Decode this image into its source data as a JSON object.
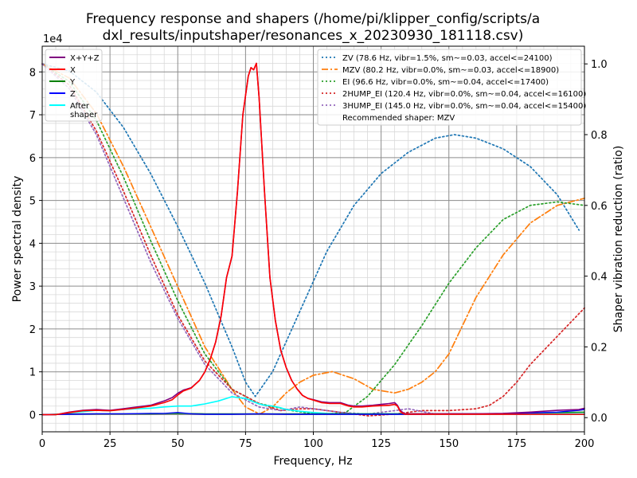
{
  "chart_data": {
    "type": "line",
    "title_lines": [
      "Frequency response and shapers (/home/pi/klipper_config/scripts/a",
      "dxl_results/inputshaper/resonances_x_20230930_181118.csv)"
    ],
    "xlabel": "Frequency, Hz",
    "ylabel": "Power spectral density",
    "y2label": "Shaper vibration reduction (ratio)",
    "y_offset_text": "1e4",
    "xlim": [
      0,
      200
    ],
    "ylim": [
      -0.4,
      8.6
    ],
    "y2lim": [
      -0.04,
      1.05
    ],
    "x_ticks": [
      0,
      25,
      50,
      75,
      100,
      125,
      150,
      175,
      200
    ],
    "x_tick_labels": [
      "0",
      "25",
      "50",
      "75",
      "100",
      "125",
      "150",
      "175",
      "200"
    ],
    "y_ticks": [
      0,
      1,
      2,
      3,
      4,
      5,
      6,
      7,
      8
    ],
    "y_tick_labels": [
      "0",
      "1",
      "2",
      "3",
      "4",
      "5",
      "6",
      "7",
      "8"
    ],
    "y2_ticks": [
      0,
      0.2,
      0.4,
      0.6,
      0.8,
      1.0
    ],
    "y2_tick_labels": [
      "0.0",
      "0.2",
      "0.4",
      "0.6",
      "0.8",
      "1.0"
    ],
    "grid": true,
    "legend_left": {
      "placement": "top-left",
      "entries": [
        {
          "label": "X+Y+Z",
          "color": "#800080"
        },
        {
          "label": "X",
          "color": "#ff0000"
        },
        {
          "label": "Y",
          "color": "#008000"
        },
        {
          "label": "Z",
          "color": "#0000ff"
        },
        {
          "label_lines": [
            "After",
            "shaper"
          ],
          "color": "#00ffff"
        }
      ]
    },
    "legend_right": {
      "placement": "top-right",
      "entries": [
        {
          "label": "ZV (78.6 Hz, vibr=1.5%, sm~=0.03, accel<=24100)",
          "color": "#1f77b4",
          "dash": "dot"
        },
        {
          "label": "MZV (80.2 Hz, vibr=0.0%, sm~=0.03, accel<=18900)",
          "color": "#ff7f0e",
          "dash": "dashdot"
        },
        {
          "label": "EI (96.6 Hz, vibr=0.0%, sm~=0.04, accel<=17400)",
          "color": "#2ca02c",
          "dash": "dot"
        },
        {
          "label": "2HUMP_EI (120.4 Hz, vibr=0.0%, sm~=0.04, accel<=16100)",
          "color": "#d62728",
          "dash": "dot"
        },
        {
          "label": "3HUMP_EI (145.0 Hz, vibr=0.0%, sm~=0.04, accel<=15400)",
          "color": "#9467bd",
          "dash": "dot"
        }
      ],
      "note": "Recommended shaper: MZV"
    },
    "series": [
      {
        "name": "X+Y+Z",
        "axis": "left",
        "color": "#800080",
        "width": 1.6,
        "x": [
          0,
          5,
          10,
          15,
          20,
          25,
          30,
          35,
          40,
          45,
          48,
          50,
          52,
          55,
          58,
          60,
          62,
          64,
          66,
          68,
          70,
          72,
          74,
          76,
          77,
          78,
          79,
          80,
          81,
          82,
          84,
          86,
          88,
          90,
          92,
          94,
          96,
          98,
          100,
          103,
          106,
          110,
          113,
          115,
          118,
          122,
          125,
          128,
          130,
          131,
          132,
          133,
          134,
          140,
          150,
          160,
          170,
          180,
          190,
          198,
          200
        ],
        "y": [
          0,
          0,
          0.06,
          0.1,
          0.12,
          0.1,
          0.14,
          0.18,
          0.22,
          0.32,
          0.4,
          0.5,
          0.57,
          0.63,
          0.8,
          1.0,
          1.3,
          1.7,
          2.3,
          3.2,
          3.7,
          5.2,
          7.0,
          7.9,
          8.1,
          8.05,
          8.2,
          7.4,
          6.3,
          5.2,
          3.2,
          2.2,
          1.5,
          1.1,
          0.8,
          0.6,
          0.45,
          0.38,
          0.35,
          0.3,
          0.28,
          0.28,
          0.22,
          0.2,
          0.2,
          0.22,
          0.24,
          0.26,
          0.28,
          0.22,
          0.1,
          0.05,
          0.02,
          0.02,
          0.02,
          0.02,
          0.03,
          0.06,
          0.1,
          0.12,
          0.15
        ]
      },
      {
        "name": "X",
        "axis": "left",
        "color": "#ff0000",
        "width": 1.6,
        "x": [
          0,
          5,
          10,
          15,
          20,
          25,
          30,
          35,
          40,
          45,
          48,
          50,
          52,
          55,
          58,
          60,
          62,
          64,
          66,
          68,
          70,
          72,
          74,
          76,
          77,
          78,
          79,
          80,
          81,
          82,
          84,
          86,
          88,
          90,
          92,
          94,
          96,
          98,
          100,
          103,
          106,
          110,
          113,
          115,
          118,
          122,
          125,
          128,
          130,
          131,
          132,
          133,
          134,
          140,
          150,
          160,
          170,
          180,
          190,
          198,
          200
        ],
        "y": [
          0,
          0,
          0.05,
          0.09,
          0.1,
          0.09,
          0.12,
          0.16,
          0.2,
          0.28,
          0.35,
          0.46,
          0.55,
          0.62,
          0.8,
          1.0,
          1.3,
          1.7,
          2.3,
          3.2,
          3.7,
          5.2,
          7.0,
          7.9,
          8.1,
          8.05,
          8.2,
          7.4,
          6.3,
          5.2,
          3.2,
          2.2,
          1.5,
          1.1,
          0.8,
          0.6,
          0.45,
          0.38,
          0.34,
          0.28,
          0.26,
          0.26,
          0.2,
          0.18,
          0.18,
          0.2,
          0.21,
          0.22,
          0.24,
          0.2,
          0.08,
          0.03,
          0.01,
          0.01,
          0.01,
          0.01,
          0.01,
          0.01,
          0.01,
          0.01,
          0.01
        ]
      },
      {
        "name": "Y",
        "axis": "left",
        "color": "#008000",
        "width": 1.4,
        "x": [
          0,
          10,
          20,
          30,
          40,
          50,
          60,
          70,
          80,
          90,
          100,
          110,
          120,
          130,
          140,
          150,
          160,
          170,
          180,
          190,
          200
        ],
        "y": [
          0,
          0.02,
          0.02,
          0.02,
          0.02,
          0.03,
          0.02,
          0.02,
          0.02,
          0.02,
          0.02,
          0.02,
          0.02,
          0.02,
          0.02,
          0.02,
          0.02,
          0.02,
          0.04,
          0.05,
          0.06
        ]
      },
      {
        "name": "Z",
        "axis": "left",
        "color": "#0000ff",
        "width": 1.4,
        "x": [
          0,
          10,
          20,
          30,
          40,
          45,
          50,
          55,
          60,
          70,
          80,
          90,
          100,
          110,
          120,
          130,
          140,
          150,
          160,
          170,
          180,
          190,
          198,
          200
        ],
        "y": [
          0,
          0.01,
          0.02,
          0.02,
          0.03,
          0.03,
          0.05,
          0.02,
          0.01,
          0.01,
          0.02,
          0.01,
          0.01,
          0.01,
          0.01,
          0.01,
          0.01,
          0.02,
          0.02,
          0.02,
          0.04,
          0.06,
          0.1,
          0.12
        ]
      },
      {
        "name": "After shaper",
        "axis": "left",
        "color": "#00ffff",
        "width": 1.6,
        "x": [
          0,
          5,
          10,
          15,
          20,
          25,
          30,
          35,
          40,
          45,
          50,
          55,
          60,
          65,
          68,
          70,
          72,
          75,
          78,
          80,
          82,
          85,
          88,
          90,
          95,
          100,
          105,
          110,
          115,
          120,
          130,
          140,
          150,
          160,
          170,
          180,
          190,
          200
        ],
        "y": [
          0,
          0,
          0.05,
          0.07,
          0.1,
          0.09,
          0.12,
          0.14,
          0.15,
          0.18,
          0.2,
          0.2,
          0.25,
          0.32,
          0.38,
          0.42,
          0.4,
          0.38,
          0.3,
          0.25,
          0.22,
          0.2,
          0.16,
          0.12,
          0.08,
          0.05,
          0.03,
          0.02,
          0.02,
          0.02,
          0.02,
          0.02,
          0.02,
          0.02,
          0.02,
          0.02,
          0.02,
          0.02
        ]
      },
      {
        "name": "ZV (78.6 Hz, vibr=1.5%, sm~=0.03, accel<=24100)",
        "axis": "right",
        "color": "#1f77b4",
        "dash": "dot",
        "width": 1.7,
        "x": [
          0,
          10,
          20,
          30,
          40,
          50,
          60,
          70,
          75,
          78.6,
          85,
          95,
          105,
          115,
          125,
          135,
          145,
          152,
          160,
          170,
          180,
          190,
          198
        ],
        "y": [
          1.0,
          0.98,
          0.92,
          0.82,
          0.69,
          0.54,
          0.38,
          0.2,
          0.1,
          0.06,
          0.13,
          0.3,
          0.47,
          0.6,
          0.69,
          0.75,
          0.79,
          0.8,
          0.79,
          0.76,
          0.71,
          0.63,
          0.53
        ]
      },
      {
        "name": "MZV (80.2 Hz, vibr=0.0%, sm~=0.03, accel<=18900)",
        "axis": "right",
        "color": "#ff7f0e",
        "dash": "dashdot",
        "width": 1.7,
        "x": [
          0,
          10,
          20,
          30,
          40,
          50,
          60,
          70,
          75,
          80.2,
          85,
          90,
          95,
          100,
          107,
          115,
          122,
          130,
          135,
          140,
          145,
          150,
          155,
          160,
          170,
          180,
          190,
          200
        ],
        "y": [
          1.0,
          0.96,
          0.86,
          0.71,
          0.54,
          0.37,
          0.2,
          0.08,
          0.03,
          0.01,
          0.03,
          0.07,
          0.1,
          0.12,
          0.13,
          0.11,
          0.08,
          0.07,
          0.08,
          0.1,
          0.13,
          0.18,
          0.26,
          0.34,
          0.46,
          0.55,
          0.6,
          0.62
        ]
      },
      {
        "name": "EI (96.6 Hz, vibr=0.0%, sm~=0.04, accel<=17400)",
        "axis": "right",
        "color": "#2ca02c",
        "dash": "dot",
        "width": 1.7,
        "x": [
          0,
          10,
          20,
          30,
          40,
          50,
          60,
          70,
          80,
          86,
          92,
          96.6,
          100,
          105,
          112,
          120,
          130,
          140,
          150,
          160,
          170,
          180,
          190,
          200
        ],
        "y": [
          1.0,
          0.95,
          0.84,
          0.68,
          0.5,
          0.33,
          0.18,
          0.08,
          0.04,
          0.03,
          0.02,
          0.015,
          0.01,
          0.01,
          0.015,
          0.06,
          0.15,
          0.26,
          0.38,
          0.48,
          0.56,
          0.6,
          0.61,
          0.6
        ]
      },
      {
        "name": "2HUMP_EI (120.4 Hz, vibr=0.0%, sm~=0.04, accel<=16100)",
        "axis": "right",
        "color": "#d62728",
        "dash": "dot",
        "width": 1.7,
        "x": [
          0,
          10,
          20,
          30,
          40,
          50,
          60,
          70,
          80,
          88,
          95,
          100,
          110,
          120.4,
          130,
          140,
          150,
          160,
          165,
          170,
          175,
          180,
          190,
          200
        ],
        "y": [
          1.0,
          0.94,
          0.81,
          0.64,
          0.46,
          0.29,
          0.16,
          0.08,
          0.04,
          0.02,
          0.025,
          0.025,
          0.015,
          0.005,
          0.01,
          0.02,
          0.02,
          0.025,
          0.035,
          0.06,
          0.1,
          0.15,
          0.23,
          0.31
        ]
      },
      {
        "name": "3HUMP_EI (145.0 Hz, vibr=0.0%, sm~=0.04, accel<=15400)",
        "axis": "right",
        "color": "#9467bd",
        "dash": "dot",
        "width": 1.7,
        "x": [
          0,
          10,
          20,
          30,
          40,
          50,
          60,
          70,
          80,
          88,
          95,
          100,
          110,
          120,
          130,
          135,
          145,
          155,
          165,
          175,
          185,
          195,
          200
        ],
        "y": [
          1.0,
          0.93,
          0.8,
          0.62,
          0.44,
          0.28,
          0.15,
          0.07,
          0.03,
          0.02,
          0.03,
          0.025,
          0.015,
          0.01,
          0.02,
          0.025,
          0.01,
          0.01,
          0.01,
          0.01,
          0.01,
          0.01,
          0.01
        ]
      }
    ]
  }
}
